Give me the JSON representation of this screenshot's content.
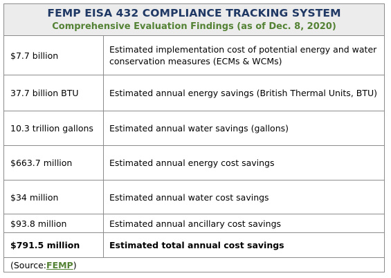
{
  "header": {
    "title": "FEMP EISA 432 COMPLIANCE TRACKING SYSTEM",
    "subtitle": "Comprehensive Evaluation Findings (as of Dec. 8, 2020)"
  },
  "rows": [
    {
      "amount": "$7.7 billion",
      "description": "Estimated implementation cost of potential energy and water conservation measures (ECMs & WCMs)"
    },
    {
      "amount": "37.7 billion BTU",
      "description": "Estimated annual energy savings (British Thermal Units, BTU)"
    },
    {
      "amount": "10.3 trillion gallons",
      "description": "Estimated annual water savings (gallons)"
    },
    {
      "amount": "$663.7 million",
      "description": "Estimated annual energy cost savings"
    },
    {
      "amount": "$34 million",
      "description": "Estimated annual water cost savings"
    },
    {
      "amount": "$93.8 million",
      "description": "Estimated annual ancillary cost savings"
    },
    {
      "amount": "$791.5 million",
      "description": "Estimated total annual cost savings"
    }
  ],
  "source": {
    "prefix": "(Source: ",
    "link_text": "FEMP",
    "suffix": ")"
  },
  "colors": {
    "title": "#1f3864",
    "subtitle": "#548235",
    "header_bg": "#ececec",
    "border": "#8c8c8c",
    "link": "#548235"
  }
}
